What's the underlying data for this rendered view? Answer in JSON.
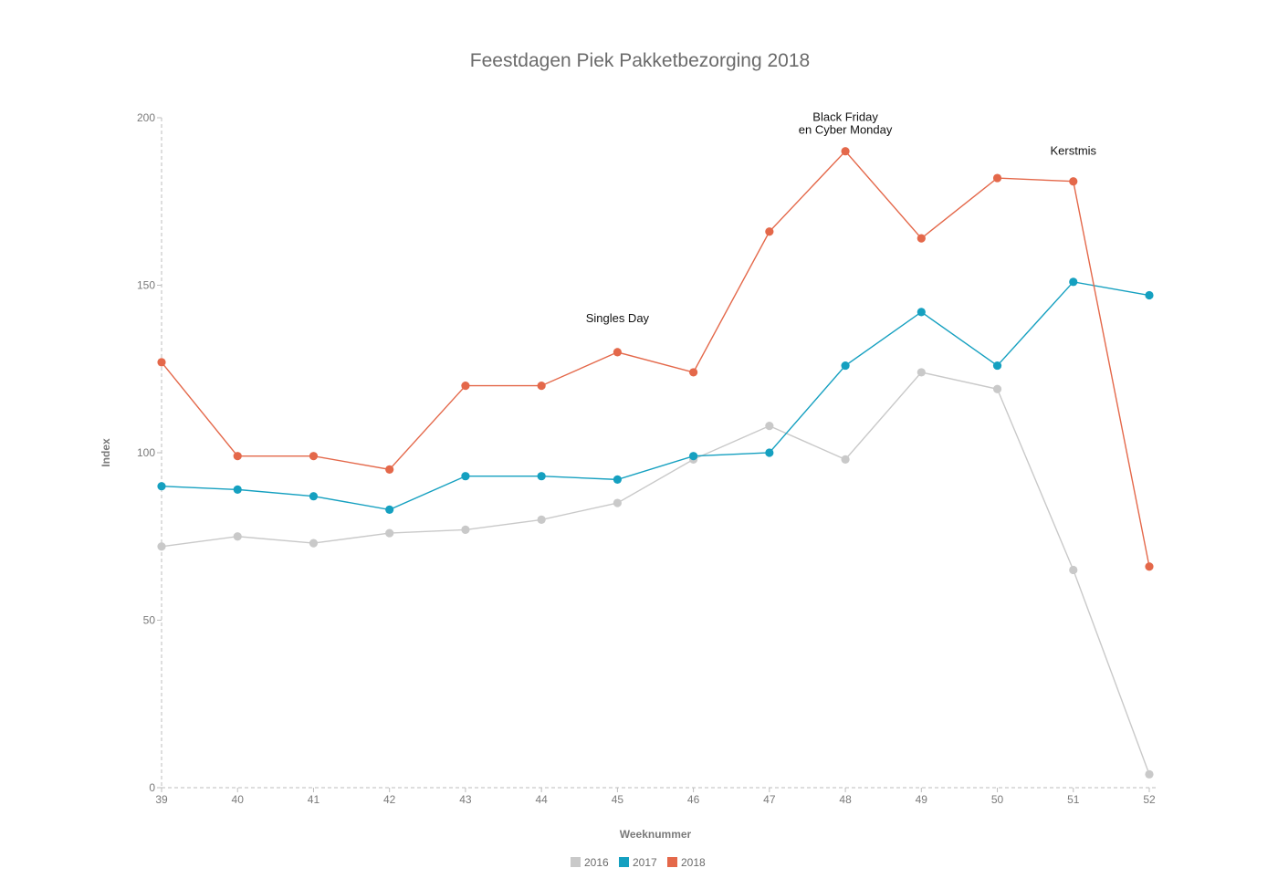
{
  "chart_data": {
    "type": "line",
    "title": "Feestdagen Piek Pakketbezorging 2018",
    "xlabel": "Weeknummer",
    "ylabel": "Index",
    "x": [
      "39",
      "40",
      "41",
      "42",
      "43",
      "44",
      "45",
      "46",
      "47",
      "48",
      "49",
      "50",
      "51",
      "52"
    ],
    "y_ticks": [
      "0",
      "50",
      "100",
      "150",
      "200"
    ],
    "ylim": [
      0,
      200
    ],
    "grid": false,
    "legend_position": "bottom-center",
    "series": [
      {
        "name": "2016",
        "color": "#c9c9c9",
        "values": [
          72,
          75,
          73,
          76,
          77,
          80,
          85,
          98,
          108,
          98,
          124,
          119,
          65,
          4
        ]
      },
      {
        "name": "2017",
        "color": "#15a0c0",
        "values": [
          90,
          89,
          87,
          83,
          93,
          93,
          92,
          99,
          100,
          126,
          142,
          126,
          151,
          147
        ]
      },
      {
        "name": "2018",
        "color": "#e4684a",
        "values": [
          127,
          99,
          99,
          95,
          120,
          120,
          130,
          124,
          166,
          190,
          164,
          182,
          181,
          66
        ]
      }
    ],
    "annotations": [
      {
        "lines": [
          "Singles Day"
        ],
        "x": "45",
        "y": 139
      },
      {
        "lines": [
          "Black Friday",
          "en Cyber Monday"
        ],
        "x": "48",
        "y": 199
      },
      {
        "lines": [
          "Kerstmis"
        ],
        "x": "51",
        "y": 189
      }
    ]
  }
}
